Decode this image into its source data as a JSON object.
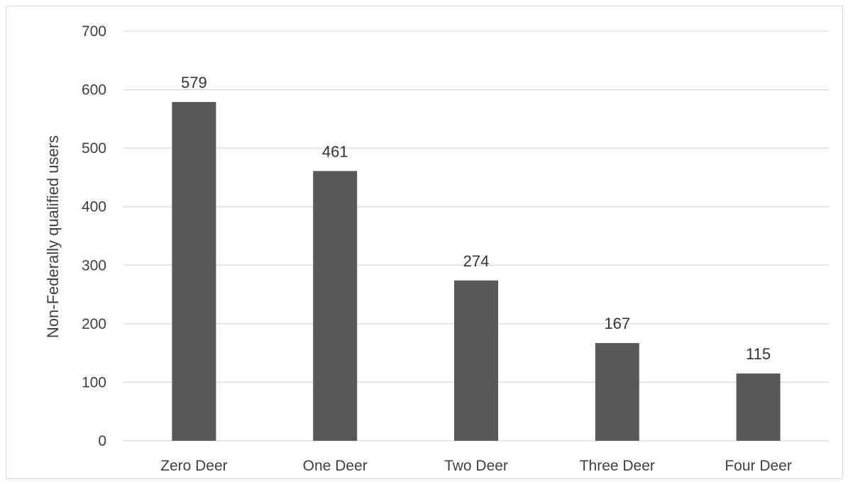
{
  "chart_data": {
    "type": "bar",
    "title": "",
    "xlabel": "",
    "ylabel": "Non-Federally qualified users",
    "ylim": [
      0,
      700
    ],
    "yticks": [
      0,
      100,
      200,
      300,
      400,
      500,
      600,
      700
    ],
    "grid": true,
    "legend": "none",
    "bar_color": "#595959",
    "grid_color": "#d9d9d9",
    "categories": [
      "Zero Deer",
      "One Deer",
      "Two Deer",
      "Three Deer",
      "Four Deer"
    ],
    "values": [
      579,
      461,
      274,
      167,
      115
    ],
    "data_labels": [
      "579",
      "461",
      "274",
      "167",
      "115"
    ]
  }
}
